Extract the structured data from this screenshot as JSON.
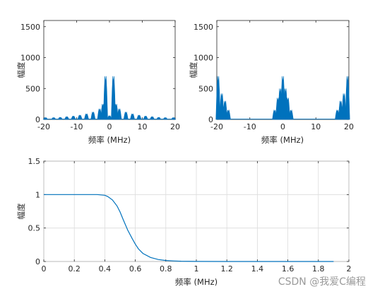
{
  "watermark": "CSDN @我爱C编程",
  "colors": {
    "series": "#0072BD",
    "grid": "#dcdcdc",
    "axis": "#262626"
  },
  "chart_data": [
    {
      "id": "spectrum-left",
      "type": "area",
      "xlabel": "频率 (MHz)",
      "ylabel": "幅度",
      "xlim": [
        -20,
        20
      ],
      "ylim": [
        0,
        1600
      ],
      "xticks": [
        "-20",
        "-10",
        "0",
        "10",
        "20"
      ],
      "yticks": [
        "0",
        "500",
        "1000",
        "1500"
      ],
      "grid": false,
      "description_peaks": [
        {
          "x": -19.5,
          "y": 30
        },
        {
          "x": -17,
          "y": 30
        },
        {
          "x": -15,
          "y": 35
        },
        {
          "x": -13,
          "y": 45
        },
        {
          "x": -11,
          "y": 55
        },
        {
          "x": -9,
          "y": 70
        },
        {
          "x": -7,
          "y": 90
        },
        {
          "x": -5,
          "y": 120
        },
        {
          "x": -3,
          "y": 170
        },
        {
          "x": -2,
          "y": 250
        },
        {
          "x": -1.2,
          "y": 700
        },
        {
          "x": 0,
          "y": 60
        },
        {
          "x": 1.2,
          "y": 700
        },
        {
          "x": 2,
          "y": 250
        },
        {
          "x": 3,
          "y": 170
        },
        {
          "x": 5,
          "y": 120
        },
        {
          "x": 7,
          "y": 90
        },
        {
          "x": 9,
          "y": 70
        },
        {
          "x": 11,
          "y": 55
        },
        {
          "x": 13,
          "y": 45
        },
        {
          "x": 15,
          "y": 35
        },
        {
          "x": 17,
          "y": 30
        },
        {
          "x": 19.5,
          "y": 30
        }
      ]
    },
    {
      "id": "spectrum-right",
      "type": "area",
      "xlabel": "频率 (MHz)",
      "ylabel": "幅度",
      "xlim": [
        -20,
        20
      ],
      "ylim": [
        0,
        1600
      ],
      "xticks": [
        "-20",
        "-10",
        "0",
        "10",
        "20"
      ],
      "yticks": [
        "0",
        "500",
        "1000",
        "1500"
      ],
      "grid": false,
      "description_peaks": [
        {
          "x": -19.6,
          "y": 700
        },
        {
          "x": -18.5,
          "y": 420
        },
        {
          "x": -17.5,
          "y": 300
        },
        {
          "x": -16.5,
          "y": 150
        },
        {
          "x": -2.5,
          "y": 150
        },
        {
          "x": -1.5,
          "y": 350
        },
        {
          "x": -0.8,
          "y": 500
        },
        {
          "x": 0,
          "y": 700
        },
        {
          "x": 0.8,
          "y": 500
        },
        {
          "x": 1.5,
          "y": 350
        },
        {
          "x": 2.5,
          "y": 150
        },
        {
          "x": 16.5,
          "y": 150
        },
        {
          "x": 17.5,
          "y": 300
        },
        {
          "x": 18.5,
          "y": 420
        },
        {
          "x": 19.6,
          "y": 700
        }
      ]
    },
    {
      "id": "filter-response",
      "type": "line",
      "xlabel": "频率 (MHz)",
      "ylabel": "幅度",
      "xlim": [
        0,
        2
      ],
      "ylim": [
        0,
        1.5
      ],
      "xticks": [
        "0",
        "0.2",
        "0.4",
        "0.6",
        "0.8",
        "1",
        "1.2",
        "1.4",
        "1.6",
        "1.8",
        "2"
      ],
      "yticks": [
        "0",
        "0.5",
        "1",
        "1.5"
      ],
      "grid": true,
      "x": [
        0,
        0.1,
        0.2,
        0.3,
        0.35,
        0.4,
        0.42,
        0.45,
        0.48,
        0.5,
        0.52,
        0.55,
        0.58,
        0.6,
        0.62,
        0.65,
        0.7,
        0.75,
        0.8,
        0.85,
        0.9,
        1.0,
        1.2,
        1.5,
        1.9
      ],
      "y": [
        1.0,
        1.0,
        1.0,
        1.0,
        1.0,
        0.99,
        0.97,
        0.92,
        0.83,
        0.74,
        0.63,
        0.47,
        0.34,
        0.26,
        0.19,
        0.12,
        0.06,
        0.03,
        0.015,
        0.008,
        0.004,
        0.001,
        0.0,
        0.0,
        0.0
      ]
    }
  ]
}
